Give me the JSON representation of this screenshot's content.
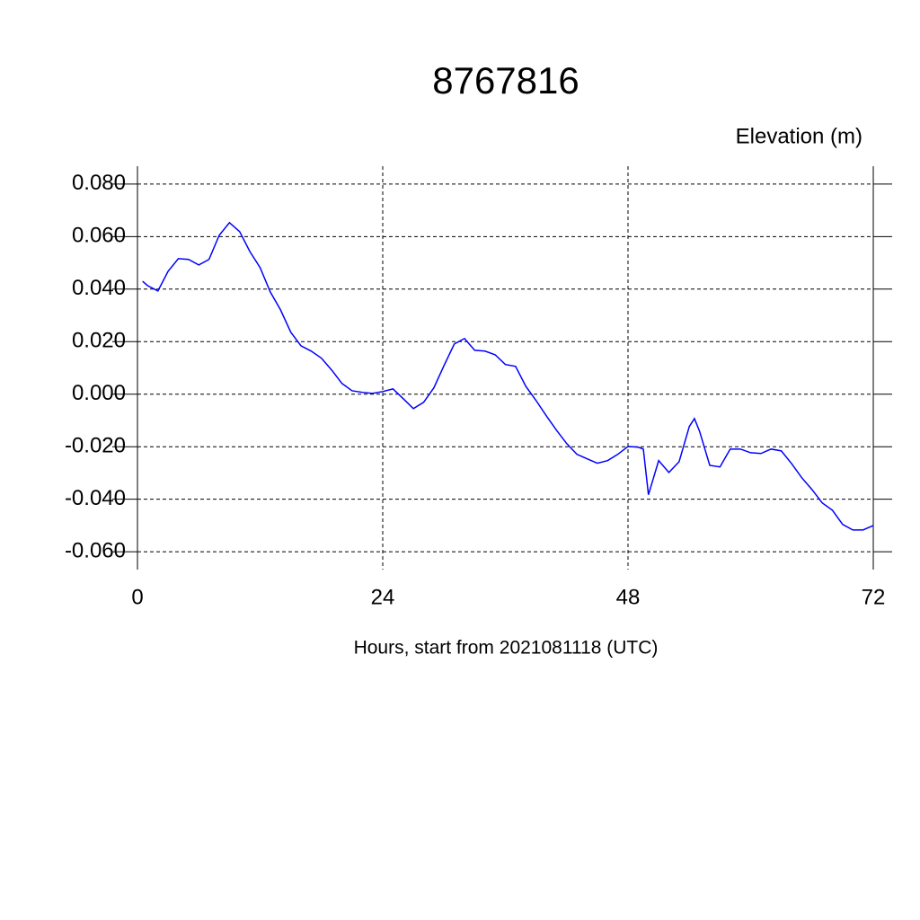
{
  "chart_data": {
    "type": "line",
    "title": "8767816",
    "subtitle": "Elevation (m)",
    "x_label": "Hours, start from 2021081118 (UTC)",
    "xlim": [
      0,
      72
    ],
    "xticks": [
      0,
      24,
      48,
      72
    ],
    "ylim": [
      -0.0668,
      0.0868
    ],
    "yticks": [
      {
        "value": 0.08,
        "label": "0.080"
      },
      {
        "value": 0.06,
        "label": "0.060"
      },
      {
        "value": 0.04,
        "label": "0.040"
      },
      {
        "value": 0.02,
        "label": "0.020"
      },
      {
        "value": 0,
        "label": "0.000"
      },
      {
        "value": -0.02,
        "label": "-0.020"
      },
      {
        "value": -0.04,
        "label": "-0.040"
      },
      {
        "value": -0.06,
        "label": "-0.060"
      }
    ],
    "grid": true,
    "x": [
      0.5,
      1,
      2,
      3,
      4,
      5,
      6,
      7,
      8,
      9,
      10,
      11,
      12,
      13,
      14,
      15,
      16,
      17,
      18,
      19,
      20,
      21,
      22,
      23,
      24,
      25,
      26,
      27,
      28,
      29,
      30,
      31,
      32,
      33,
      34,
      35,
      36,
      37,
      38,
      39,
      40,
      41,
      42,
      43,
      44,
      45,
      46,
      47,
      48,
      49,
      49.5,
      50,
      51,
      52,
      53,
      54,
      54.5,
      55,
      56,
      57,
      58,
      59,
      60,
      61,
      62,
      63,
      64,
      65,
      66,
      67,
      68,
      69,
      70,
      71,
      72
    ],
    "series": [
      {
        "name": "Elevation",
        "color": "#0000ff",
        "values": [
          0.043,
          0.0413,
          0.0393,
          0.0468,
          0.0516,
          0.0513,
          0.0492,
          0.0513,
          0.0605,
          0.0653,
          0.0619,
          0.0543,
          0.0482,
          0.0389,
          0.0321,
          0.0236,
          0.0184,
          0.0164,
          0.0137,
          0.0092,
          0.0041,
          0.0013,
          0.0007,
          0.0003,
          0.001,
          0.002,
          -0.0017,
          -0.0055,
          -0.0031,
          0.0024,
          0.0109,
          0.0191,
          0.0212,
          0.0167,
          0.0164,
          0.015,
          0.0113,
          0.0106,
          0.003,
          -0.0024,
          -0.0082,
          -0.0137,
          -0.0188,
          -0.0229,
          -0.0246,
          -0.0263,
          -0.0253,
          -0.0229,
          -0.0199,
          -0.0202,
          -0.0209,
          -0.0383,
          -0.0253,
          -0.0298,
          -0.0257,
          -0.0123,
          -0.0093,
          -0.0141,
          -0.0271,
          -0.0277,
          -0.0209,
          -0.0209,
          -0.0223,
          -0.0226,
          -0.0209,
          -0.0216,
          -0.0264,
          -0.0318,
          -0.0363,
          -0.0414,
          -0.0442,
          -0.0496,
          -0.0517,
          -0.0517,
          -0.05
        ]
      }
    ]
  }
}
